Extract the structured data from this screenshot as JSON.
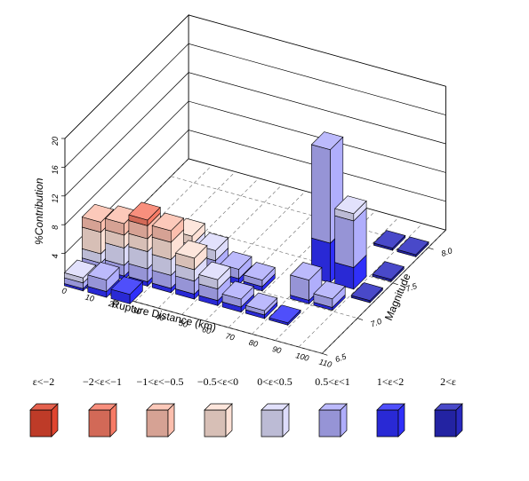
{
  "chart_data": {
    "type": "bar3d",
    "title": "",
    "xlabel": "Rupture Distance (km)",
    "ylabel": "Magnitude",
    "zlabel": "%Contribution",
    "x_ticks": [
      "0",
      "10",
      "20",
      "30",
      "40",
      "50",
      "60",
      "70",
      "80",
      "90",
      "100",
      "110"
    ],
    "y_ticks": [
      "6.5",
      "7.0",
      "7.5",
      "8.0"
    ],
    "z_ticks": [
      "4",
      "8",
      "12",
      "16",
      "20"
    ],
    "xlim": [
      0,
      110
    ],
    "ylim": [
      6.5,
      8.25
    ],
    "zlim": [
      0,
      20
    ],
    "grid": true,
    "legend_position": "bottom",
    "epsilon_bins": [
      {
        "label": "ε<−2",
        "color": "#e0452f"
      },
      {
        "label": "−2<ε<−1",
        "color": "#f77b66"
      },
      {
        "label": "−1<ε<−0.5",
        "color": "#fcbfae"
      },
      {
        "label": "−0.5<ε<0",
        "color": "#fde1d6"
      },
      {
        "label": "0<ε<0.5",
        "color": "#dddcfb"
      },
      {
        "label": "0.5<ε<1",
        "color": "#b0aefc"
      },
      {
        "label": "1<ε<2",
        "color": "#3030fa"
      },
      {
        "label": "2<ε",
        "color": "#2929bf"
      }
    ],
    "stacks": [
      {
        "distance": 5,
        "magnitude": 6.55,
        "segments": [
          [
            6,
            0.3
          ],
          [
            5,
            0.8
          ],
          [
            4,
            0.7
          ]
        ]
      },
      {
        "distance": 15,
        "magnitude": 6.55,
        "segments": [
          [
            6,
            0.8
          ],
          [
            5,
            1.6
          ]
        ]
      },
      {
        "distance": 25,
        "magnitude": 6.55,
        "segments": [
          [
            6,
            1.3
          ]
        ]
      },
      {
        "distance": 5,
        "magnitude": 6.8,
        "segments": [
          [
            6,
            0.4
          ],
          [
            5,
            1.0
          ],
          [
            4,
            1.3
          ],
          [
            3,
            3.0
          ],
          [
            2,
            1.4
          ]
        ]
      },
      {
        "distance": 15,
        "magnitude": 6.8,
        "segments": [
          [
            6,
            0.5
          ],
          [
            5,
            1.5
          ],
          [
            4,
            2.4
          ],
          [
            3,
            1.8
          ],
          [
            2,
            1.6
          ]
        ]
      },
      {
        "distance": 25,
        "magnitude": 6.8,
        "segments": [
          [
            6,
            0.6
          ],
          [
            5,
            1.8
          ],
          [
            4,
            2.4
          ],
          [
            3,
            1.8
          ],
          [
            2,
            1.8
          ],
          [
            1,
            0.8
          ]
        ]
      },
      {
        "distance": 35,
        "magnitude": 6.8,
        "segments": [
          [
            6,
            0.6
          ],
          [
            5,
            1.8
          ],
          [
            4,
            2.2
          ],
          [
            3,
            2.4
          ],
          [
            2,
            1.6
          ]
        ]
      },
      {
        "distance": 45,
        "magnitude": 6.8,
        "segments": [
          [
            6,
            0.7
          ],
          [
            5,
            1.8
          ],
          [
            4,
            1.6
          ],
          [
            3,
            1.6
          ]
        ]
      },
      {
        "distance": 55,
        "magnitude": 6.8,
        "segments": [
          [
            6,
            0.7
          ],
          [
            5,
            1.6
          ],
          [
            4,
            1.3
          ]
        ]
      },
      {
        "distance": 65,
        "magnitude": 6.8,
        "segments": [
          [
            6,
            0.7
          ],
          [
            5,
            1.1
          ]
        ]
      },
      {
        "distance": 75,
        "magnitude": 6.8,
        "segments": [
          [
            6,
            0.5
          ],
          [
            5,
            0.6
          ]
        ]
      },
      {
        "distance": 85,
        "magnitude": 6.8,
        "segments": [
          [
            6,
            0.3
          ]
        ]
      },
      {
        "distance": 25,
        "magnitude": 7.1,
        "segments": [
          [
            6,
            0.6
          ],
          [
            5,
            1.2
          ],
          [
            4,
            1.2
          ]
        ]
      },
      {
        "distance": 35,
        "magnitude": 7.1,
        "segments": [
          [
            6,
            0.8
          ],
          [
            5,
            1.4
          ],
          [
            4,
            1.5
          ],
          [
            3,
            1.2
          ]
        ]
      },
      {
        "distance": 45,
        "magnitude": 7.1,
        "segments": [
          [
            6,
            0.9
          ],
          [
            5,
            1.5
          ],
          [
            4,
            1.4
          ]
        ]
      },
      {
        "distance": 55,
        "magnitude": 7.1,
        "segments": [
          [
            6,
            0.8
          ],
          [
            5,
            1.3
          ]
        ]
      },
      {
        "distance": 65,
        "magnitude": 7.1,
        "segments": [
          [
            6,
            0.6
          ],
          [
            5,
            0.9
          ]
        ]
      },
      {
        "distance": 85,
        "magnitude": 7.1,
        "segments": [
          [
            6,
            0.5
          ],
          [
            5,
            2.8
          ]
        ]
      },
      {
        "distance": 95,
        "magnitude": 7.1,
        "segments": [
          [
            6,
            0.4
          ],
          [
            5,
            1.2
          ]
        ]
      },
      {
        "distance": 85,
        "magnitude": 7.4,
        "segments": [
          [
            6,
            5.5
          ],
          [
            5,
            13.0
          ]
        ]
      },
      {
        "distance": 95,
        "magnitude": 7.4,
        "segments": [
          [
            6,
            3.0
          ],
          [
            5,
            6.5
          ],
          [
            4,
            1.0
          ]
        ]
      },
      {
        "distance": 95,
        "magnitude": 7.95,
        "segments": [
          [
            7,
            0.3
          ]
        ]
      },
      {
        "distance": 105,
        "magnitude": 7.95,
        "segments": [
          [
            7,
            0.3
          ]
        ]
      },
      {
        "distance": 105,
        "magnitude": 7.6,
        "segments": [
          [
            7,
            0.3
          ]
        ]
      },
      {
        "distance": 105,
        "magnitude": 7.3,
        "segments": [
          [
            7,
            0.3
          ]
        ]
      }
    ]
  }
}
